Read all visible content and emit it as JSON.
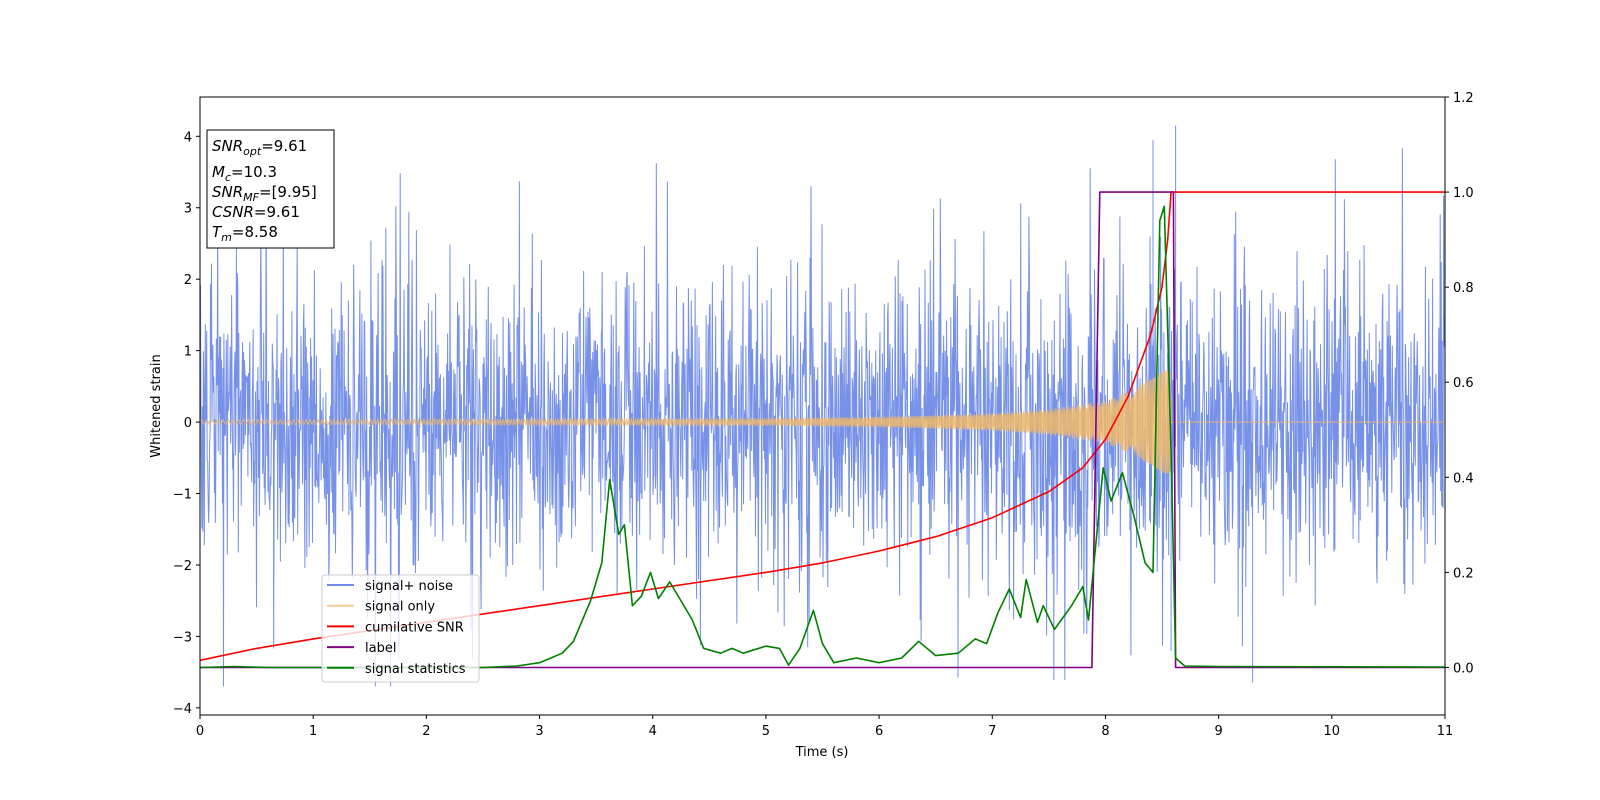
{
  "chart_data": {
    "type": "line",
    "xlabel": "Time (s)",
    "ylabel_left": "Whitened strain",
    "ylabel_right": "",
    "xlim": [
      0,
      11
    ],
    "ylim_left": [
      -4.1,
      4.55
    ],
    "ylim_right": [
      -0.1,
      1.2
    ],
    "x_ticks": [
      0,
      1,
      2,
      3,
      4,
      5,
      6,
      7,
      8,
      9,
      10,
      11
    ],
    "y_ticks_left": [
      4,
      3,
      2,
      1,
      0,
      -1,
      -2,
      -3,
      -4
    ],
    "y_ticks_right": [
      1.2,
      1.0,
      0.8,
      0.6,
      0.4,
      0.2,
      0.0
    ],
    "grid": false,
    "legend_position": "lower-left",
    "colors": {
      "noise": "#6f8be6",
      "signal": "#f0b86a",
      "csnr": "#ff0000",
      "label": "#800080",
      "stats": "#008000"
    },
    "annotation_box": [
      {
        "sym": "SNR",
        "sub": "opt",
        "value": "=9.61"
      },
      {
        "sym": "M",
        "sub": "c",
        "value": "=10.3"
      },
      {
        "sym": "SNR",
        "sub": "MF",
        "value": "=[9.95]"
      },
      {
        "sym": "CSNR",
        "sub": "",
        "value": "=9.61"
      },
      {
        "sym": "T",
        "sub": "m",
        "value": "=8.58"
      }
    ],
    "series": [
      {
        "name": "signal+ noise",
        "axis": "left",
        "style": "noise",
        "amp_typical": 1.4,
        "amp_peak": 4.15,
        "x_range": [
          0,
          11
        ]
      },
      {
        "name": "signal only",
        "axis": "left",
        "style": "chirp",
        "x_range": [
          0,
          8.58
        ],
        "envelope": [
          [
            0.0,
            0.03
          ],
          [
            3.0,
            0.04
          ],
          [
            5.0,
            0.05
          ],
          [
            6.0,
            0.07
          ],
          [
            7.0,
            0.12
          ],
          [
            7.5,
            0.18
          ],
          [
            8.0,
            0.3
          ],
          [
            8.3,
            0.5
          ],
          [
            8.5,
            0.7
          ],
          [
            8.58,
            0.75
          ]
        ]
      },
      {
        "name": "cumilative SNR",
        "axis": "right",
        "points": [
          [
            0,
            0.015
          ],
          [
            0.5,
            0.04
          ],
          [
            1,
            0.06
          ],
          [
            2,
            0.095
          ],
          [
            3,
            0.13
          ],
          [
            4,
            0.165
          ],
          [
            5,
            0.2
          ],
          [
            5.5,
            0.22
          ],
          [
            6,
            0.245
          ],
          [
            6.5,
            0.275
          ],
          [
            7,
            0.315
          ],
          [
            7.5,
            0.37
          ],
          [
            7.8,
            0.42
          ],
          [
            8.0,
            0.48
          ],
          [
            8.2,
            0.57
          ],
          [
            8.4,
            0.7
          ],
          [
            8.5,
            0.8
          ],
          [
            8.55,
            0.9
          ],
          [
            8.58,
            1.0
          ],
          [
            11,
            1.0
          ]
        ]
      },
      {
        "name": "label",
        "axis": "right",
        "points": [
          [
            0,
            0.0
          ],
          [
            7.88,
            0.0
          ],
          [
            7.95,
            1.0
          ],
          [
            8.6,
            1.0
          ],
          [
            8.62,
            0.0
          ],
          [
            11,
            0.0
          ]
        ]
      },
      {
        "name": "signal statistics",
        "axis": "right",
        "points": [
          [
            0,
            0.0
          ],
          [
            0.3,
            0.002
          ],
          [
            0.6,
            0.0
          ],
          [
            1,
            0.0
          ],
          [
            2,
            0.0
          ],
          [
            2.5,
            0.0
          ],
          [
            2.8,
            0.003
          ],
          [
            3.0,
            0.01
          ],
          [
            3.1,
            0.02
          ],
          [
            3.2,
            0.03
          ],
          [
            3.3,
            0.055
          ],
          [
            3.45,
            0.14
          ],
          [
            3.55,
            0.22
          ],
          [
            3.62,
            0.395
          ],
          [
            3.7,
            0.28
          ],
          [
            3.75,
            0.3
          ],
          [
            3.82,
            0.13
          ],
          [
            3.9,
            0.15
          ],
          [
            3.98,
            0.2
          ],
          [
            4.05,
            0.145
          ],
          [
            4.15,
            0.18
          ],
          [
            4.25,
            0.14
          ],
          [
            4.35,
            0.1
          ],
          [
            4.45,
            0.04
          ],
          [
            4.6,
            0.03
          ],
          [
            4.7,
            0.04
          ],
          [
            4.8,
            0.03
          ],
          [
            5.0,
            0.045
          ],
          [
            5.12,
            0.04
          ],
          [
            5.2,
            0.005
          ],
          [
            5.3,
            0.04
          ],
          [
            5.42,
            0.12
          ],
          [
            5.5,
            0.05
          ],
          [
            5.6,
            0.01
          ],
          [
            5.8,
            0.02
          ],
          [
            6.0,
            0.01
          ],
          [
            6.2,
            0.02
          ],
          [
            6.35,
            0.055
          ],
          [
            6.5,
            0.025
          ],
          [
            6.7,
            0.03
          ],
          [
            6.85,
            0.06
          ],
          [
            6.95,
            0.05
          ],
          [
            7.05,
            0.115
          ],
          [
            7.15,
            0.165
          ],
          [
            7.25,
            0.105
          ],
          [
            7.3,
            0.185
          ],
          [
            7.4,
            0.095
          ],
          [
            7.45,
            0.13
          ],
          [
            7.55,
            0.08
          ],
          [
            7.7,
            0.13
          ],
          [
            7.8,
            0.17
          ],
          [
            7.85,
            0.1
          ],
          [
            7.98,
            0.42
          ],
          [
            8.05,
            0.35
          ],
          [
            8.15,
            0.41
          ],
          [
            8.25,
            0.32
          ],
          [
            8.35,
            0.22
          ],
          [
            8.42,
            0.2
          ],
          [
            8.48,
            0.94
          ],
          [
            8.52,
            0.97
          ],
          [
            8.58,
            0.45
          ],
          [
            8.62,
            0.02
          ],
          [
            8.7,
            0.003
          ],
          [
            9,
            0.002
          ],
          [
            11,
            0.001
          ]
        ]
      }
    ]
  }
}
